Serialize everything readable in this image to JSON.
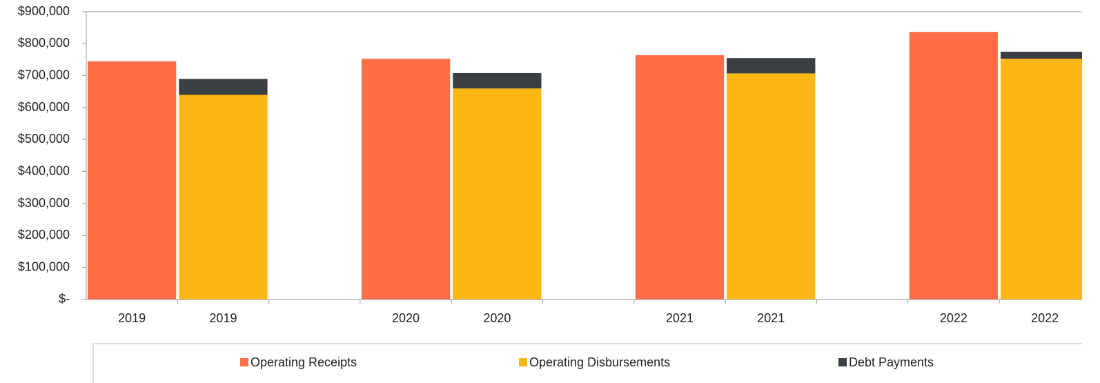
{
  "chart_data": {
    "type": "stacked_bar",
    "categories": [
      "2019",
      "2019",
      null,
      "2020",
      "2020",
      null,
      "2021",
      "2021",
      null,
      "2022",
      "2022",
      null
    ],
    "series": [
      {
        "name": "Operating Receipts",
        "color": "#ff6f47",
        "values": [
          745000,
          null,
          null,
          753000,
          null,
          null,
          764000,
          null,
          null,
          837000,
          null,
          null
        ]
      },
      {
        "name": "Operating Disbursements",
        "color": "#fdb714",
        "values": [
          null,
          640000,
          null,
          null,
          660000,
          null,
          null,
          707000,
          null,
          null,
          753000,
          null
        ]
      },
      {
        "name": "Debt Payments",
        "color": "#3b3f44",
        "values": [
          null,
          50000,
          null,
          null,
          48000,
          null,
          null,
          48000,
          null,
          null,
          22000,
          null
        ]
      }
    ],
    "ylim": [
      0,
      900000
    ],
    "yticks": [
      {
        "value": 0,
        "label": "$-"
      },
      {
        "value": 100000,
        "label": "$100,000"
      },
      {
        "value": 200000,
        "label": "$200,000"
      },
      {
        "value": 300000,
        "label": "$300,000"
      },
      {
        "value": 400000,
        "label": "$400,000"
      },
      {
        "value": 500000,
        "label": "$500,000"
      },
      {
        "value": 600000,
        "label": "$600,000"
      },
      {
        "value": 700000,
        "label": "$700,000"
      },
      {
        "value": 800000,
        "label": "$800,000"
      },
      {
        "value": 900000,
        "label": "$900,000"
      }
    ],
    "grid": false,
    "legend": "bottom"
  }
}
